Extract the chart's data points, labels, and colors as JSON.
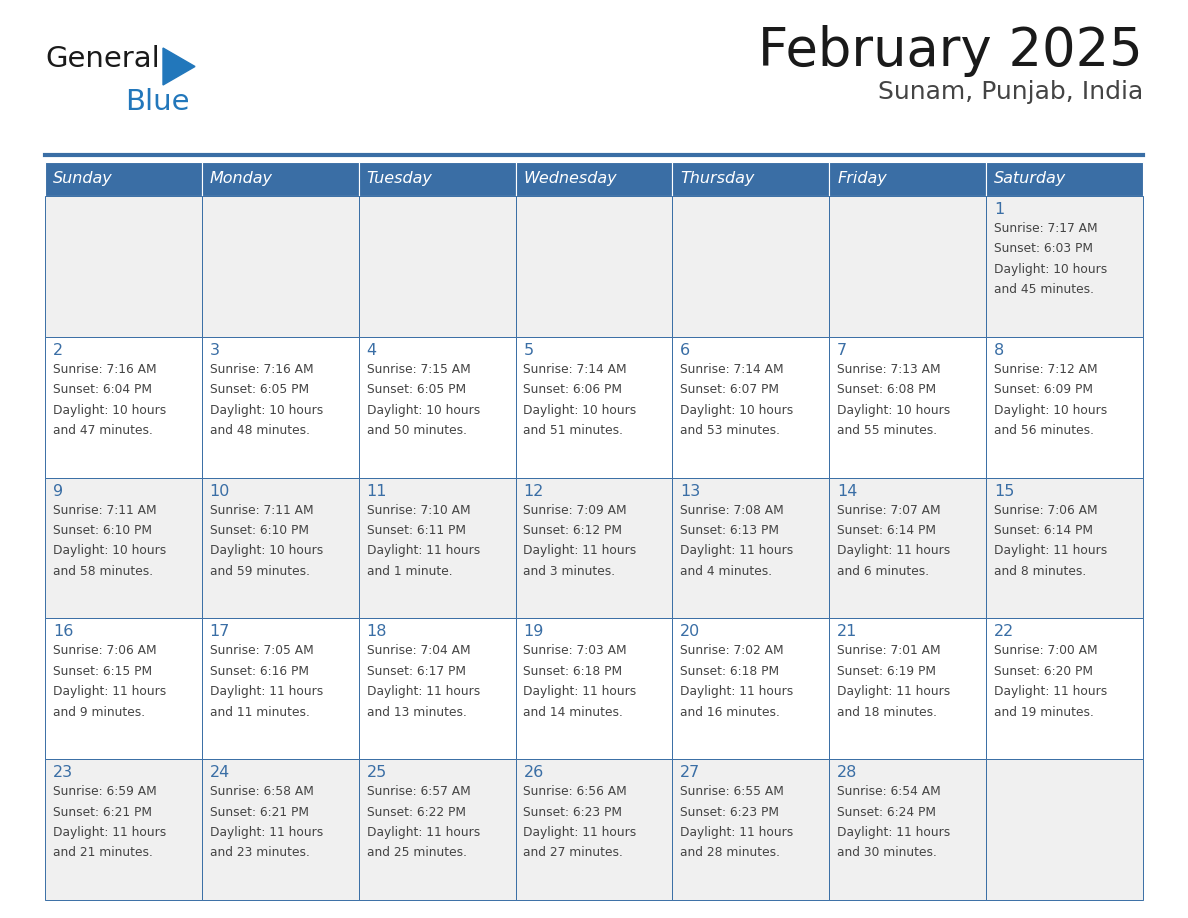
{
  "title": "February 2025",
  "subtitle": "Sunam, Punjab, India",
  "days_of_week": [
    "Sunday",
    "Monday",
    "Tuesday",
    "Wednesday",
    "Thursday",
    "Friday",
    "Saturday"
  ],
  "header_bg_color": "#3a6ea5",
  "header_text_color": "#ffffff",
  "row_bg_colors": [
    "#f0f0f0",
    "#ffffff",
    "#f0f0f0",
    "#ffffff",
    "#f0f0f0"
  ],
  "cell_border_color": "#3a6ea5",
  "day_number_color": "#3a6ea5",
  "text_color": "#444444",
  "logo_general_color": "#1a1a1a",
  "logo_blue_color": "#2277bb",
  "calendar_data": [
    [
      null,
      null,
      null,
      null,
      null,
      null,
      {
        "day": 1,
        "sunrise": "7:17 AM",
        "sunset": "6:03 PM",
        "daylight": "10 hours and 45 minutes."
      }
    ],
    [
      {
        "day": 2,
        "sunrise": "7:16 AM",
        "sunset": "6:04 PM",
        "daylight": "10 hours and 47 minutes."
      },
      {
        "day": 3,
        "sunrise": "7:16 AM",
        "sunset": "6:05 PM",
        "daylight": "10 hours and 48 minutes."
      },
      {
        "day": 4,
        "sunrise": "7:15 AM",
        "sunset": "6:05 PM",
        "daylight": "10 hours and 50 minutes."
      },
      {
        "day": 5,
        "sunrise": "7:14 AM",
        "sunset": "6:06 PM",
        "daylight": "10 hours and 51 minutes."
      },
      {
        "day": 6,
        "sunrise": "7:14 AM",
        "sunset": "6:07 PM",
        "daylight": "10 hours and 53 minutes."
      },
      {
        "day": 7,
        "sunrise": "7:13 AM",
        "sunset": "6:08 PM",
        "daylight": "10 hours and 55 minutes."
      },
      {
        "day": 8,
        "sunrise": "7:12 AM",
        "sunset": "6:09 PM",
        "daylight": "10 hours and 56 minutes."
      }
    ],
    [
      {
        "day": 9,
        "sunrise": "7:11 AM",
        "sunset": "6:10 PM",
        "daylight": "10 hours and 58 minutes."
      },
      {
        "day": 10,
        "sunrise": "7:11 AM",
        "sunset": "6:10 PM",
        "daylight": "10 hours and 59 minutes."
      },
      {
        "day": 11,
        "sunrise": "7:10 AM",
        "sunset": "6:11 PM",
        "daylight": "11 hours and 1 minute."
      },
      {
        "day": 12,
        "sunrise": "7:09 AM",
        "sunset": "6:12 PM",
        "daylight": "11 hours and 3 minutes."
      },
      {
        "day": 13,
        "sunrise": "7:08 AM",
        "sunset": "6:13 PM",
        "daylight": "11 hours and 4 minutes."
      },
      {
        "day": 14,
        "sunrise": "7:07 AM",
        "sunset": "6:14 PM",
        "daylight": "11 hours and 6 minutes."
      },
      {
        "day": 15,
        "sunrise": "7:06 AM",
        "sunset": "6:14 PM",
        "daylight": "11 hours and 8 minutes."
      }
    ],
    [
      {
        "day": 16,
        "sunrise": "7:06 AM",
        "sunset": "6:15 PM",
        "daylight": "11 hours and 9 minutes."
      },
      {
        "day": 17,
        "sunrise": "7:05 AM",
        "sunset": "6:16 PM",
        "daylight": "11 hours and 11 minutes."
      },
      {
        "day": 18,
        "sunrise": "7:04 AM",
        "sunset": "6:17 PM",
        "daylight": "11 hours and 13 minutes."
      },
      {
        "day": 19,
        "sunrise": "7:03 AM",
        "sunset": "6:18 PM",
        "daylight": "11 hours and 14 minutes."
      },
      {
        "day": 20,
        "sunrise": "7:02 AM",
        "sunset": "6:18 PM",
        "daylight": "11 hours and 16 minutes."
      },
      {
        "day": 21,
        "sunrise": "7:01 AM",
        "sunset": "6:19 PM",
        "daylight": "11 hours and 18 minutes."
      },
      {
        "day": 22,
        "sunrise": "7:00 AM",
        "sunset": "6:20 PM",
        "daylight": "11 hours and 19 minutes."
      }
    ],
    [
      {
        "day": 23,
        "sunrise": "6:59 AM",
        "sunset": "6:21 PM",
        "daylight": "11 hours and 21 minutes."
      },
      {
        "day": 24,
        "sunrise": "6:58 AM",
        "sunset": "6:21 PM",
        "daylight": "11 hours and 23 minutes."
      },
      {
        "day": 25,
        "sunrise": "6:57 AM",
        "sunset": "6:22 PM",
        "daylight": "11 hours and 25 minutes."
      },
      {
        "day": 26,
        "sunrise": "6:56 AM",
        "sunset": "6:23 PM",
        "daylight": "11 hours and 27 minutes."
      },
      {
        "day": 27,
        "sunrise": "6:55 AM",
        "sunset": "6:23 PM",
        "daylight": "11 hours and 28 minutes."
      },
      {
        "day": 28,
        "sunrise": "6:54 AM",
        "sunset": "6:24 PM",
        "daylight": "11 hours and 30 minutes."
      },
      null
    ]
  ]
}
